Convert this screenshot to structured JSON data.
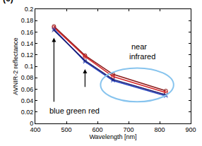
{
  "chart_data": {
    "type": "line",
    "title": "(c)",
    "x": [
      460,
      560,
      650,
      820
    ],
    "series": [
      {
        "color": "#8b1a1a",
        "marker": "circle",
        "values": [
          0.17,
          0.119,
          0.086,
          0.057
        ]
      },
      {
        "color": "#d62728",
        "marker": "circle",
        "values": [
          0.168,
          0.117,
          0.082,
          0.054
        ]
      },
      {
        "color": "#1f3fbf",
        "marker": "x",
        "values": [
          0.165,
          0.108,
          0.075,
          0.048
        ]
      },
      {
        "color": "#1a1a6e",
        "marker": "x",
        "values": [
          0.163,
          0.11,
          0.077,
          0.05
        ]
      }
    ],
    "xlabel": "Wavelength [nm]",
    "ylabel": "AVNIR-2 reflectance",
    "xlim": [
      400,
      900
    ],
    "xticks": [
      400,
      500,
      600,
      700,
      800,
      900
    ],
    "ylim": [
      0,
      0.2
    ],
    "yticks": [
      0,
      0.02,
      0.04,
      0.06,
      0.08,
      0.1,
      0.12,
      0.14,
      0.16,
      0.18,
      0.2
    ],
    "grid": false,
    "annotations": [
      "near",
      "infrared",
      "blue green red"
    ]
  }
}
